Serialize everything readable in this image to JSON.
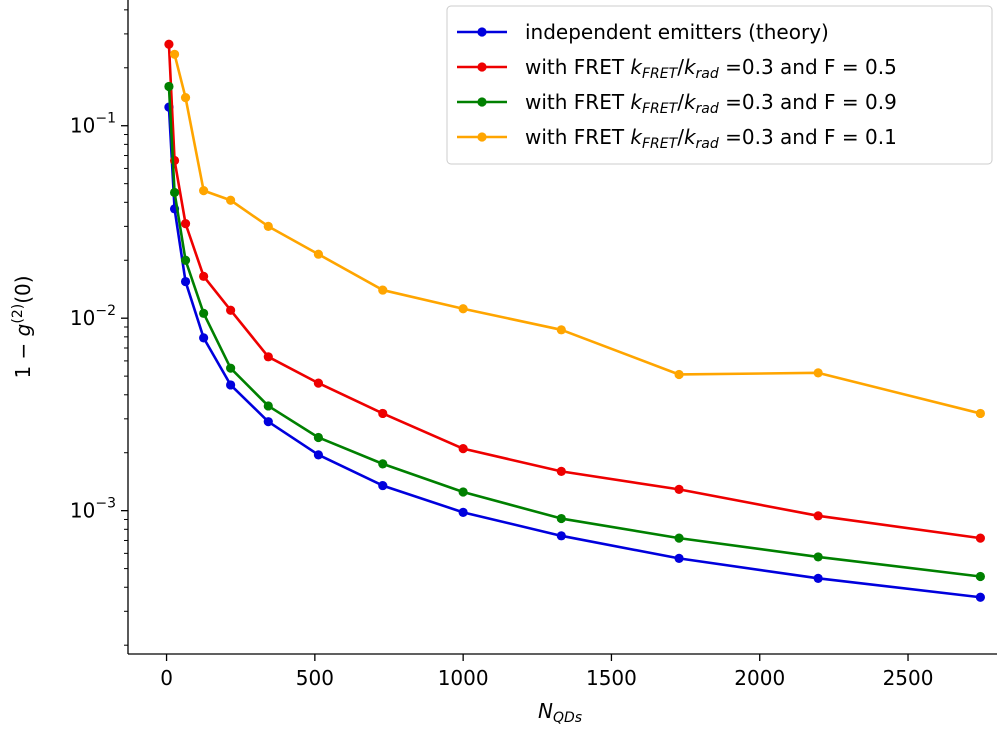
{
  "chart_data": {
    "type": "line",
    "title": "",
    "xlabel": "N",
    "xlabel_sub": "QDs",
    "ylabel_prefix": "1 − ",
    "ylabel_var": "g",
    "ylabel_sup": "(2)",
    "ylabel_suffix": "(0)",
    "xlim": [
      -130,
      2800
    ],
    "ylim": [
      0.00018,
      0.45
    ],
    "yscale": "log",
    "xticks": [
      0,
      500,
      1000,
      1500,
      2000,
      2500
    ],
    "xtick_labels": [
      "0",
      "500",
      "1000",
      "1500",
      "2000",
      "2500"
    ],
    "yticks": [
      0.001,
      0.01,
      0.1
    ],
    "ytick_labels": [
      {
        "base": "10",
        "exp": "−3"
      },
      {
        "base": "10",
        "exp": "−2"
      },
      {
        "base": "10",
        "exp": "−1"
      }
    ],
    "grid": false,
    "legend_position": "upper-right",
    "series": [
      {
        "name_parts": [
          "independent emitters (theory)"
        ],
        "color": "#0000dd",
        "x": [
          8,
          27,
          64,
          125,
          216,
          343,
          512,
          729,
          1000,
          1331,
          1728,
          2197,
          2744
        ],
        "y": [
          0.125,
          0.037,
          0.0155,
          0.0079,
          0.0045,
          0.0029,
          0.00195,
          0.00135,
          0.00098,
          0.00074,
          0.000565,
          0.000445,
          0.000355
        ]
      },
      {
        "name_parts": [
          "with FRET ",
          "k",
          "FRET",
          "/",
          "k",
          "rad",
          " =0.3 and F = 0.5"
        ],
        "color": "#ee0000",
        "x": [
          8,
          27,
          64,
          125,
          216,
          343,
          512,
          729,
          1000,
          1331,
          1728,
          2197,
          2744
        ],
        "y": [
          0.265,
          0.066,
          0.031,
          0.0165,
          0.011,
          0.0063,
          0.0046,
          0.0032,
          0.0021,
          0.0016,
          0.00129,
          0.00094,
          0.00072
        ]
      },
      {
        "name_parts": [
          "with FRET ",
          "k",
          "FRET",
          "/",
          "k",
          "rad",
          " =0.3 and F = 0.9"
        ],
        "color": "#008000",
        "x": [
          8,
          27,
          64,
          125,
          216,
          343,
          512,
          729,
          1000,
          1331,
          1728,
          2197,
          2744
        ],
        "y": [
          0.16,
          0.045,
          0.02,
          0.0106,
          0.0055,
          0.0035,
          0.0024,
          0.00175,
          0.00125,
          0.00091,
          0.00072,
          0.000575,
          0.000455
        ]
      },
      {
        "name_parts": [
          "with FRET ",
          "k",
          "FRET",
          "/",
          "k",
          "rad",
          " =0.3 and F = 0.1"
        ],
        "color": "#ffa500",
        "x": [
          27,
          64,
          125,
          216,
          343,
          512,
          729,
          1000,
          1331,
          1728,
          2197,
          2744
        ],
        "y": [
          0.235,
          0.14,
          0.046,
          0.041,
          0.03,
          0.0215,
          0.014,
          0.0112,
          0.0087,
          0.0051,
          0.0052,
          0.0032
        ]
      }
    ]
  }
}
